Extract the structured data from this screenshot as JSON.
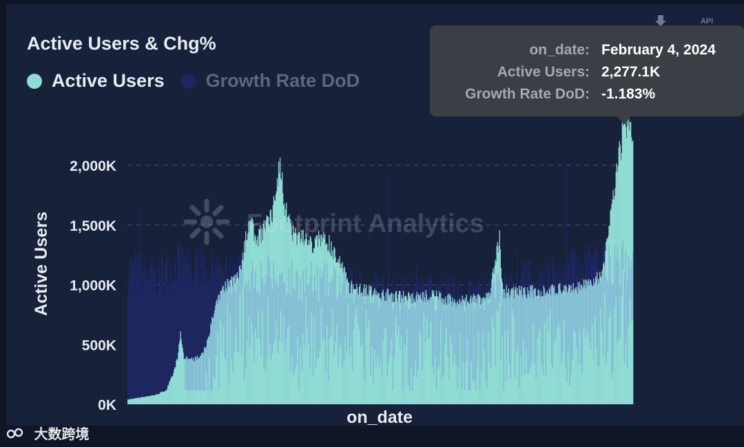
{
  "chart_data": {
    "type": "bar",
    "title": "Active Users & Chg%",
    "xlabel": "on_date",
    "ylabel": "Active Users",
    "ylim": [
      0,
      2600
    ],
    "yticks": [
      "0K",
      "500K",
      "1,000K",
      "1,500K",
      "2,000K"
    ],
    "ytick_values": [
      0,
      500,
      1000,
      1500,
      2000
    ],
    "grid": true,
    "legend_position": "top-left",
    "series": [
      {
        "name": "Active Users",
        "color": "#8fdcd4",
        "unit": "K",
        "anchors": [
          [
            0,
            40
          ],
          [
            20,
            60
          ],
          [
            40,
            80
          ],
          [
            55,
            120
          ],
          [
            65,
            260
          ],
          [
            72,
            420
          ],
          [
            75,
            600
          ],
          [
            80,
            390
          ],
          [
            95,
            380
          ],
          [
            110,
            460
          ],
          [
            120,
            700
          ],
          [
            130,
            900
          ],
          [
            140,
            1000
          ],
          [
            150,
            1050
          ],
          [
            162,
            1150
          ],
          [
            172,
            1550
          ],
          [
            185,
            1400
          ],
          [
            195,
            1500
          ],
          [
            205,
            1600
          ],
          [
            212,
            1800
          ],
          [
            217,
            2050
          ],
          [
            223,
            1700
          ],
          [
            235,
            1450
          ],
          [
            250,
            1400
          ],
          [
            262,
            1350
          ],
          [
            275,
            1400
          ],
          [
            287,
            1350
          ],
          [
            300,
            1250
          ],
          [
            315,
            1000
          ],
          [
            345,
            950
          ],
          [
            375,
            920
          ],
          [
            405,
            900
          ],
          [
            435,
            920
          ],
          [
            465,
            870
          ],
          [
            490,
            880
          ],
          [
            515,
            900
          ],
          [
            530,
            1400
          ],
          [
            535,
            950
          ],
          [
            560,
            950
          ],
          [
            590,
            950
          ],
          [
            620,
            970
          ],
          [
            650,
            1000
          ],
          [
            665,
            1050
          ],
          [
            676,
            1080
          ],
          [
            682,
            1300
          ],
          [
            690,
            1700
          ],
          [
            698,
            2050
          ],
          [
            705,
            2250
          ],
          [
            712,
            2400
          ],
          [
            717,
            2420
          ],
          [
            720,
            2277
          ]
        ],
        "tooltip": {
          "on_date": "February 4, 2024",
          "value": "2,277.1K"
        }
      },
      {
        "name": "Growth Rate DoD",
        "color": "#1e2660",
        "unit": "%",
        "anchors": [
          [
            0,
            1100
          ],
          [
            40,
            1050
          ],
          [
            70,
            1150
          ],
          [
            85,
            1100
          ],
          [
            100,
            1100
          ],
          [
            130,
            1050
          ],
          [
            160,
            1100
          ],
          [
            200,
            1050
          ],
          [
            260,
            1000
          ],
          [
            300,
            980
          ],
          [
            340,
            950
          ],
          [
            380,
            920
          ],
          [
            420,
            920
          ],
          [
            460,
            900
          ],
          [
            500,
            920
          ],
          [
            540,
            950
          ],
          [
            560,
            1000
          ],
          [
            600,
            1050
          ],
          [
            640,
            1100
          ],
          [
            680,
            1150
          ],
          [
            720,
            1150
          ]
        ],
        "spikes": [
          [
            17,
            1650
          ],
          [
            120,
            1300
          ],
          [
            140,
            1250
          ],
          [
            372,
            1900
          ],
          [
            412,
            1200
          ],
          [
            555,
            1300
          ],
          [
            625,
            2000
          ],
          [
            640,
            1250
          ],
          [
            700,
            1200
          ]
        ],
        "tooltip": {
          "value": "-1.183%"
        }
      }
    ]
  },
  "tooltip": {
    "rows": [
      {
        "key": "on_date:",
        "value": "February 4, 2024"
      },
      {
        "key": "Active Users:",
        "value": "2,277.1K"
      },
      {
        "key": "Growth Rate DoD:",
        "value": "-1.183%"
      }
    ]
  },
  "toolbar": {
    "download_icon": "download-icon",
    "api_label": "API"
  },
  "watermark": {
    "text": "Footprint Analytics",
    "icon": "sun-logo-icon"
  },
  "footer": {
    "logo_text": "大数跨境",
    "icon": "logo-icon"
  }
}
